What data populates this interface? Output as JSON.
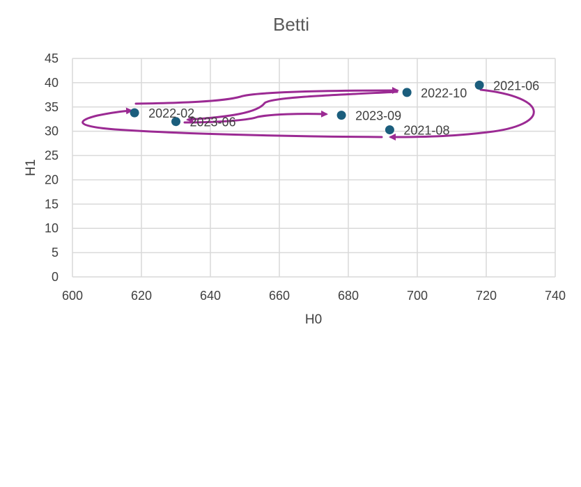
{
  "chart_data": {
    "type": "scatter",
    "title": "Betti",
    "xlabel": "H0",
    "ylabel": "H1",
    "xlim": [
      600,
      740
    ],
    "ylim": [
      0,
      45
    ],
    "xticks": [
      "600",
      "620",
      "640",
      "660",
      "680",
      "700",
      "720",
      "740"
    ],
    "yticks": [
      "0",
      "5",
      "10",
      "15",
      "20",
      "25",
      "30",
      "35",
      "40",
      "45"
    ],
    "grid": true,
    "points": [
      {
        "label": "2021-06",
        "x": 718,
        "y": 39.5
      },
      {
        "label": "2021-08",
        "x": 692,
        "y": 30.3
      },
      {
        "label": "2022-02",
        "x": 618,
        "y": 33.8
      },
      {
        "label": "2022-10",
        "x": 697,
        "y": 38.0
      },
      {
        "label": "2023-06",
        "x": 630,
        "y": 32.0
      },
      {
        "label": "2023-09",
        "x": 678,
        "y": 33.3
      }
    ]
  },
  "colors": {
    "marker": "#1b5e7d",
    "arrow": "#9b2a93",
    "grid": "#d9d9d9",
    "text": "#404040"
  }
}
